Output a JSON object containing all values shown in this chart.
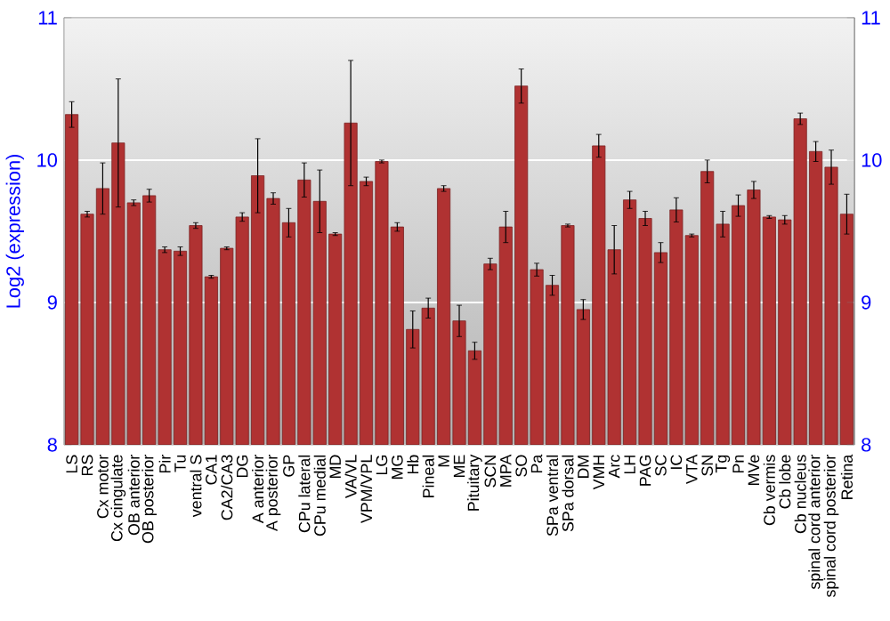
{
  "chart_data": {
    "type": "bar",
    "ylabel": "Log2 (expression)",
    "categories": [
      "LS",
      "RS",
      "Cx motor",
      "Cx cingulate",
      "OB anterior",
      "OB posterior",
      "Pir",
      "Tu",
      "ventral S",
      "CA1",
      "CA2/CA3",
      "DG",
      "A anterior",
      "A posterior",
      "GP",
      "CPu lateral",
      "CPu medial",
      "MD",
      "VA/VL",
      "VPM/VPL",
      "LG",
      "MG",
      "Hb",
      "Pineal",
      "M",
      "ME",
      "Pituitary",
      "SCN",
      "MPA",
      "SO",
      "Pa",
      "SPa ventral",
      "SPa dorsal",
      "DM",
      "VMH",
      "Arc",
      "LH",
      "PAG",
      "SC",
      "IC",
      "VTA",
      "SN",
      "Tg",
      "Pn",
      "MVe",
      "Cb vermis",
      "Cb lobe",
      "Cb nucleus",
      "spinal cord anterior",
      "spinal cord posterior",
      "Retina"
    ],
    "values": [
      10.32,
      9.62,
      9.8,
      10.12,
      9.7,
      9.75,
      9.37,
      9.36,
      9.54,
      9.18,
      9.38,
      9.6,
      9.89,
      9.73,
      9.56,
      9.86,
      9.71,
      9.48,
      10.26,
      9.85,
      9.99,
      9.53,
      8.81,
      8.96,
      9.8,
      8.87,
      8.66,
      9.27,
      9.53,
      10.52,
      9.23,
      9.12,
      9.54,
      8.95,
      10.1,
      9.37,
      9.72,
      9.59,
      9.35,
      9.65,
      9.47,
      9.92,
      9.55,
      9.68,
      9.79,
      9.6,
      9.58,
      10.29,
      10.06,
      9.95,
      9.62
    ],
    "errors": [
      0.09,
      0.02,
      0.18,
      0.45,
      0.02,
      0.045,
      0.02,
      0.03,
      0.02,
      0.01,
      0.01,
      0.03,
      0.26,
      0.04,
      0.1,
      0.12,
      0.22,
      0.01,
      0.44,
      0.03,
      0.01,
      0.03,
      0.13,
      0.07,
      0.02,
      0.11,
      0.06,
      0.04,
      0.11,
      0.12,
      0.045,
      0.07,
      0.01,
      0.07,
      0.08,
      0.17,
      0.06,
      0.05,
      0.07,
      0.085,
      0.01,
      0.08,
      0.09,
      0.075,
      0.06,
      0.01,
      0.03,
      0.04,
      0.07,
      0.12,
      0.14
    ],
    "color": "#b03232",
    "ylim": [
      8,
      11
    ],
    "yticks": [
      8,
      9,
      10,
      11
    ],
    "y2lim": [
      8,
      11
    ],
    "y2ticks": [
      8,
      9,
      10,
      11
    ],
    "grid": "y"
  }
}
